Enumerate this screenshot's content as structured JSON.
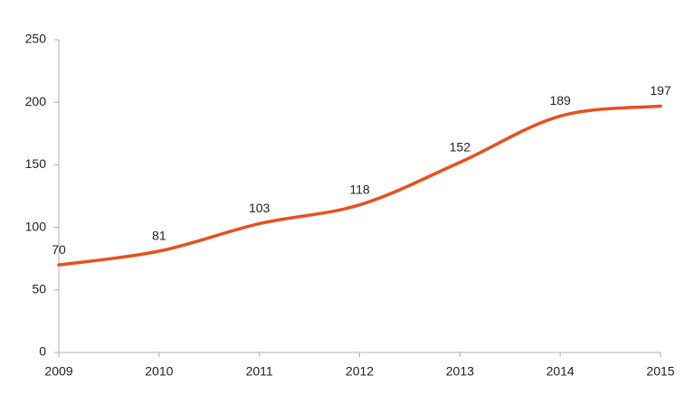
{
  "chart_data": {
    "type": "line",
    "x": [
      2009,
      2010,
      2011,
      2012,
      2013,
      2014,
      2015
    ],
    "series": [
      {
        "color": "#e8501e",
        "values": [
          70,
          81,
          103,
          118,
          152,
          189,
          197
        ]
      }
    ],
    "xlim": [
      2009,
      2015
    ],
    "xticks": [
      2009,
      2010,
      2011,
      2012,
      2013,
      2014,
      2015
    ],
    "ylim": [
      0,
      250
    ],
    "yticks": [
      0,
      50,
      100,
      150,
      200,
      250
    ],
    "grid": false,
    "smooth": true
  }
}
